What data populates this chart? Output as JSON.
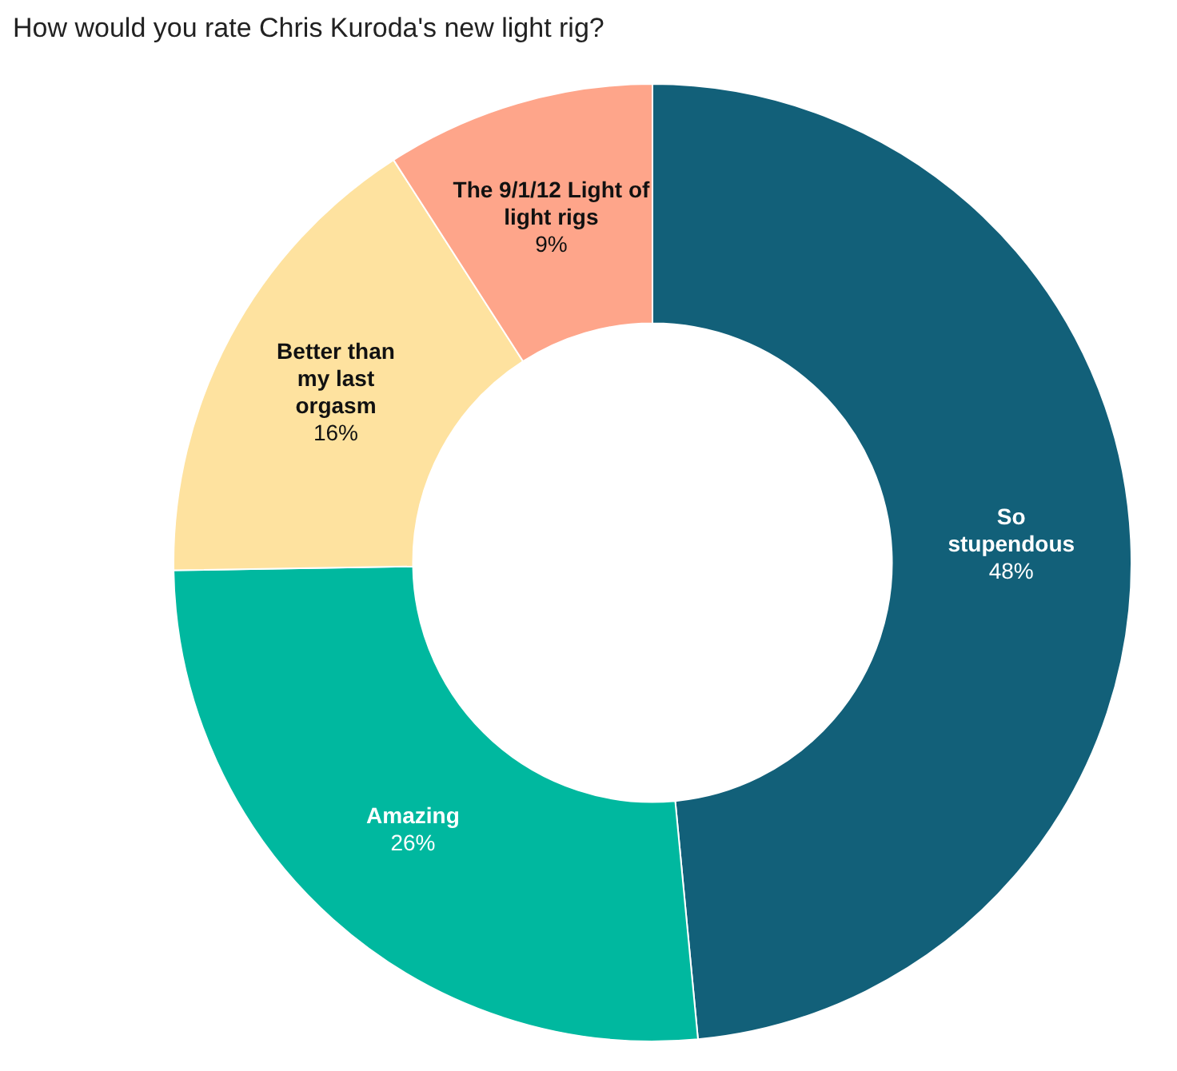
{
  "chart_data": {
    "type": "donut",
    "title": "How would you rate Chris Kuroda's new light rig?",
    "categories": [
      "So stupendous",
      "Amazing",
      "Better than my last orgasm",
      "The 9/1/12 Light of light rigs"
    ],
    "values": [
      48,
      26,
      16,
      9
    ],
    "colors": [
      "#126079",
      "#00b89f",
      "#fee29f",
      "#fea58a"
    ],
    "value_labels": [
      "48%",
      "26%",
      "16%",
      "9%"
    ],
    "legend": false
  }
}
